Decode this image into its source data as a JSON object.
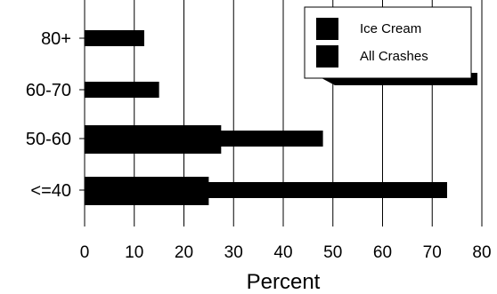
{
  "chart_data": {
    "type": "bar",
    "orientation": "horizontal",
    "title": "",
    "xlabel": "Percent",
    "ylabel": "",
    "xlim": [
      0,
      80
    ],
    "x_ticks": [
      "0",
      "10",
      "20",
      "30",
      "40",
      "50",
      "60",
      "70",
      "80"
    ],
    "categories": [
      "80+",
      "60-70",
      "50-60",
      "<=40"
    ],
    "series": [
      {
        "name": "Ice Cream",
        "values": [
          0,
          0,
          27.5,
          25
        ]
      },
      {
        "name": "All Crashes",
        "values": [
          12,
          15,
          48,
          73
        ]
      }
    ],
    "grid": "vertical",
    "legend_position": "top-right",
    "colors": {
      "bars": "#000000",
      "background": "#ffffff"
    }
  }
}
